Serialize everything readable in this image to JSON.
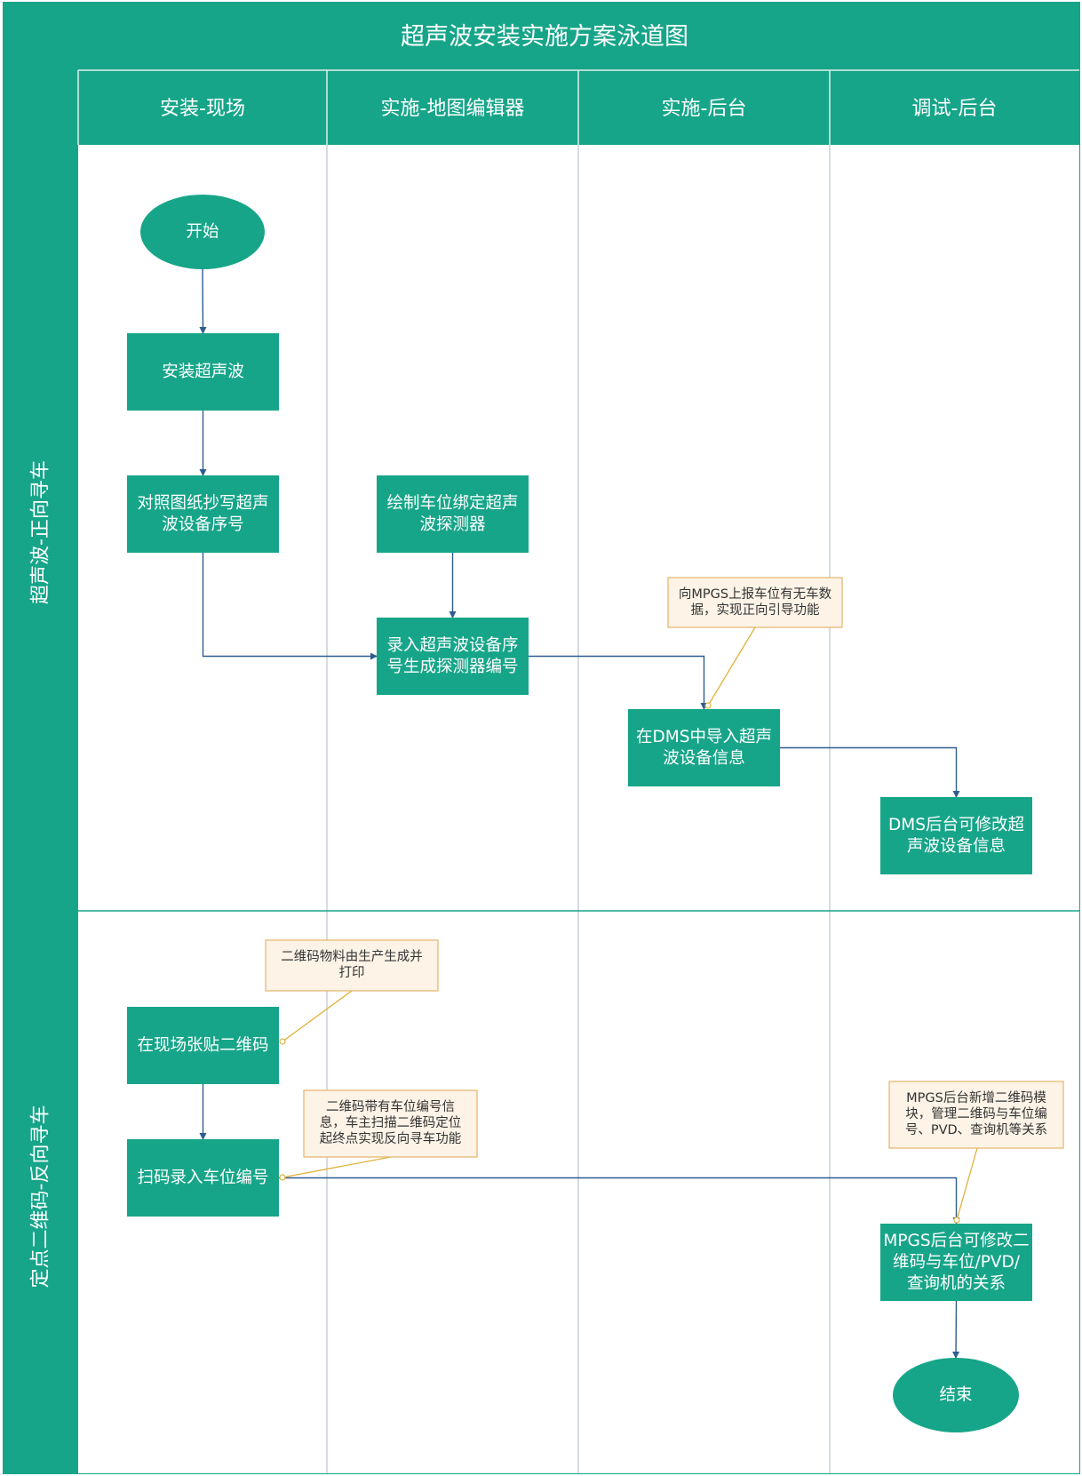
{
  "title": "超声波安装实施方案泳道图",
  "colors": {
    "header_fill": "#17a589",
    "header_text": "#ffffff",
    "process_fill": "#17a589",
    "process_text": "#ffffff",
    "note_fill": "#fdf3e6",
    "note_border": "#e3b46b",
    "note_text": "#333333",
    "edge": "#2e5d8f",
    "note_link": "#e0b23a",
    "divider": "#c8d0d8",
    "row_divider": "#17a589"
  },
  "columns": [
    {
      "label": "安装-现场"
    },
    {
      "label": "实施-地图编辑器"
    },
    {
      "label": "实施-后台"
    },
    {
      "label": "调试-后台"
    }
  ],
  "rows": [
    {
      "label": "超声波-正向寻车"
    },
    {
      "label": "定点二维码-反向寻车"
    }
  ],
  "nodes": [
    {
      "id": "start",
      "shape": "ellipse",
      "lines": [
        "开始"
      ]
    },
    {
      "id": "install-ultrasonic",
      "shape": "rect",
      "lines": [
        "安装超声波"
      ]
    },
    {
      "id": "copy-serial",
      "shape": "rect",
      "lines": [
        "对照图纸抄写超声",
        "波设备序号"
      ]
    },
    {
      "id": "draw-parking",
      "shape": "rect",
      "lines": [
        "绘制车位绑定超声",
        "波探测器"
      ]
    },
    {
      "id": "enter-serial",
      "shape": "rect",
      "lines": [
        "录入超声波设备序",
        "号生成探测器编号"
      ]
    },
    {
      "id": "dms-import",
      "shape": "rect",
      "lines": [
        "在DMS中导入超声",
        "波设备信息"
      ]
    },
    {
      "id": "dms-modify",
      "shape": "rect",
      "lines": [
        "DMS后台可修改超",
        "声波设备信息"
      ]
    },
    {
      "id": "post-qr",
      "shape": "rect",
      "lines": [
        "在现场张贴二维码"
      ]
    },
    {
      "id": "scan-qr",
      "shape": "rect",
      "lines": [
        "扫码录入车位编号"
      ]
    },
    {
      "id": "mpgs-modify",
      "shape": "rect",
      "lines": [
        "MPGS后台可修改二",
        "维码与车位/PVD/",
        "查询机的关系"
      ]
    },
    {
      "id": "end",
      "shape": "ellipse",
      "lines": [
        "结束"
      ]
    }
  ],
  "notes": [
    {
      "id": "note-mpgs-report",
      "lines": [
        "向MPGS上报车位有无车数",
        "据，实现正向引导功能"
      ],
      "target": "dms-import"
    },
    {
      "id": "note-qr-print",
      "lines": [
        "二维码物料由生产生成并",
        "打印"
      ],
      "target": "post-qr"
    },
    {
      "id": "note-qr-info",
      "lines": [
        "二维码带有车位编号信",
        "息，车主扫描二维码定位",
        "起终点实现反向寻车功能"
      ],
      "target": "scan-qr"
    },
    {
      "id": "note-mpgs-module",
      "lines": [
        "MPGS后台新增二维码模",
        "块，管理二维码与车位编",
        "号、PVD、查询机等关系"
      ],
      "target": "mpgs-modify"
    }
  ],
  "edges": [
    {
      "from": "start",
      "to": "install-ultrasonic"
    },
    {
      "from": "install-ultrasonic",
      "to": "copy-serial"
    },
    {
      "from": "copy-serial",
      "to": "enter-serial"
    },
    {
      "from": "draw-parking",
      "to": "enter-serial"
    },
    {
      "from": "enter-serial",
      "to": "dms-import"
    },
    {
      "from": "dms-import",
      "to": "dms-modify"
    },
    {
      "from": "post-qr",
      "to": "scan-qr"
    },
    {
      "from": "scan-qr",
      "to": "mpgs-modify"
    },
    {
      "from": "mpgs-modify",
      "to": "end"
    }
  ]
}
